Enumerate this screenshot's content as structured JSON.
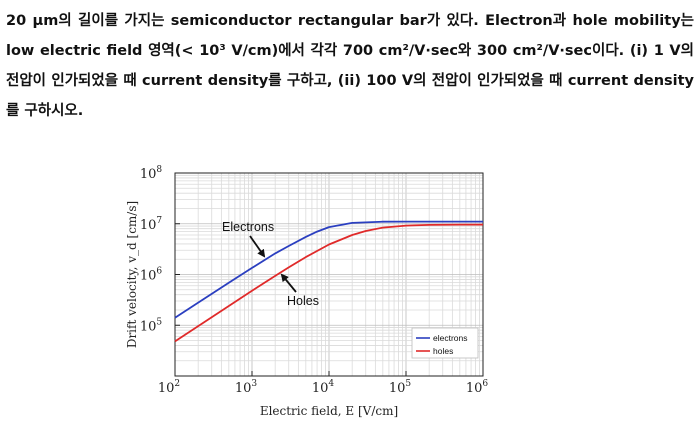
{
  "problem": {
    "text": "20 μm의 길이를 가지는 semiconductor rectangular bar가 있다. Electron과 hole mobility는 low electric field 영역(< 10³ V/cm)에서 각각 700 cm²/V·sec와 300 cm²/V·sec이다. (i) 1 V의 전압이 인가되었을 때 current density를 구하고, (ii) 100 V의 전압이 인가되었을 때 current density를 구하시오."
  },
  "chart_data": {
    "type": "line",
    "xlabel": "Electric field, E [V/cm]",
    "ylabel": "Drift velocity, v_d [cm/s]",
    "xscale": "log",
    "yscale": "log",
    "xlim": [
      100,
      1000000
    ],
    "ylim": [
      10000,
      100000000
    ],
    "x_ticks": [
      {
        "value": 100,
        "mant": "10",
        "exp": "2"
      },
      {
        "value": 1000,
        "mant": "10",
        "exp": "3"
      },
      {
        "value": 10000,
        "mant": "10",
        "exp": "4"
      },
      {
        "value": 100000,
        "mant": "10",
        "exp": "5"
      },
      {
        "value": 1000000,
        "mant": "10",
        "exp": "6"
      }
    ],
    "y_ticks": [
      {
        "value": 100000,
        "mant": "10",
        "exp": "5"
      },
      {
        "value": 1000000,
        "mant": "10",
        "exp": "6"
      },
      {
        "value": 10000000,
        "mant": "10",
        "exp": "7"
      },
      {
        "value": 100000000,
        "mant": "10",
        "exp": "8"
      }
    ],
    "grid": true,
    "legend": "bottom-right",
    "series": [
      {
        "name": "electrons",
        "color": "#2b3fc0",
        "x": [
          100,
          200,
          500,
          1000,
          2000,
          3000,
          5000,
          7000,
          10000,
          20000,
          50000,
          100000,
          200000,
          500000,
          1000000
        ],
        "y": [
          140000,
          280000,
          690000,
          1350000,
          2600000,
          3650000,
          5500000,
          7000000,
          8600000,
          10400000,
          10950000,
          11000000,
          11000000,
          11000000,
          11000000
        ]
      },
      {
        "name": "holes",
        "color": "#e02a2a",
        "x": [
          100,
          200,
          500,
          1000,
          2000,
          3000,
          5000,
          10000,
          20000,
          30000,
          50000,
          100000,
          200000,
          500000,
          1000000
        ],
        "y": [
          48000,
          96000,
          240000,
          480000,
          940000,
          1380000,
          2200000,
          3900000,
          6000000,
          7200000,
          8400000,
          9200000,
          9500000,
          9600000,
          9600000
        ]
      }
    ],
    "annotations": [
      {
        "text": "Electrons",
        "points_to": "electrons"
      },
      {
        "text": "Holes",
        "points_to": "holes"
      }
    ]
  }
}
